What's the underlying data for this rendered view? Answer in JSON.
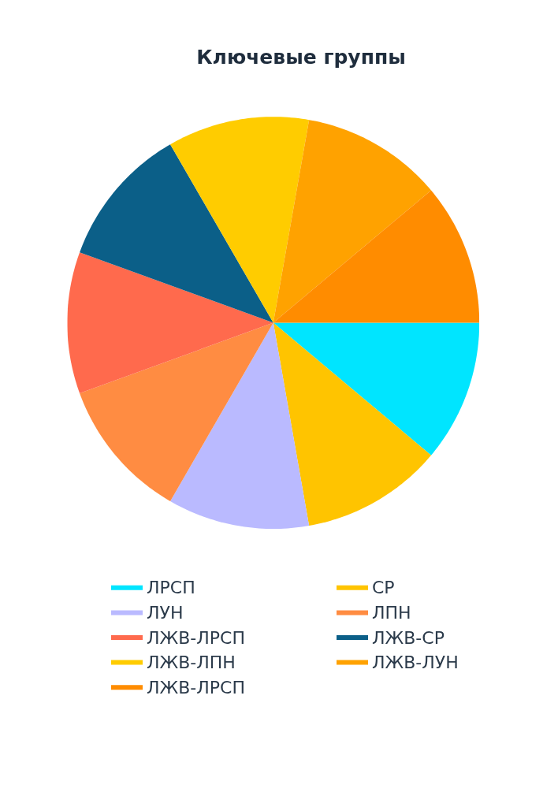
{
  "chart_data": {
    "type": "pie",
    "title": "Ключевые группы",
    "categories": [
      "ЛРСП",
      "СР",
      "ЛУН",
      "ЛПН",
      "ЛЖВ-ЛРСП",
      "ЛЖВ-СР",
      "ЛЖВ-ЛПН",
      "ЛЖВ-ЛУН",
      "ЛЖВ-ЛРСП"
    ],
    "values": [
      11.11,
      11.11,
      11.11,
      11.11,
      11.11,
      11.11,
      11.11,
      11.11,
      11.11
    ],
    "colors": [
      "#00e5ff",
      "#ffc400",
      "#babaff",
      "#ff8c42",
      "#ff6a4d",
      "#0b5f88",
      "#ffcc00",
      "#ffa200",
      "#ff8c00"
    ],
    "legend": "bottom"
  }
}
